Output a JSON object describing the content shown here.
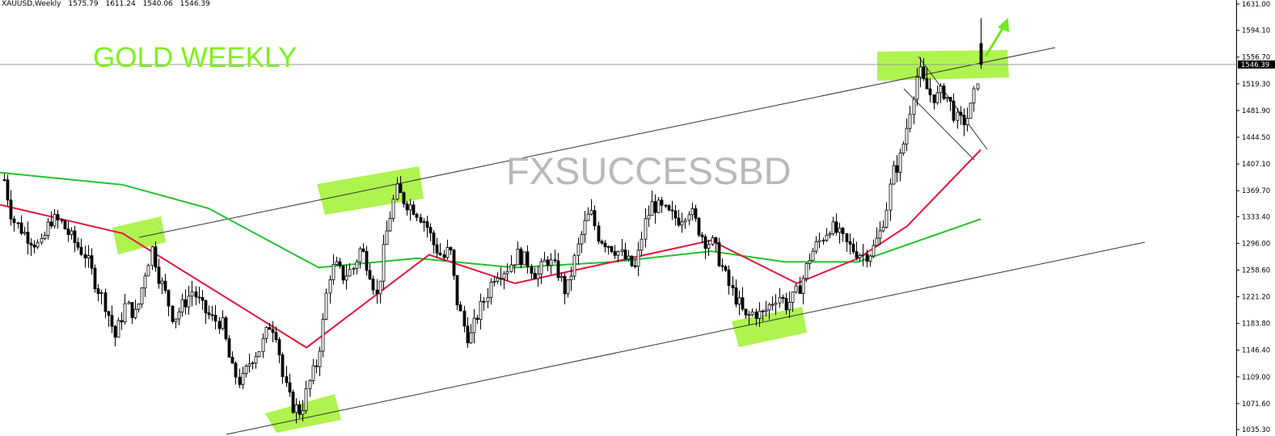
{
  "header": {
    "symbol": "XAUUSD,Weekly",
    "open": "1575.79",
    "high": "1611.24",
    "low": "1540.06",
    "close": "1546.39"
  },
  "title_label": "GOLD WEEKLY",
  "watermark": "FXSUCCESSBD",
  "colors": {
    "bull_candle_fill": "#ffffff",
    "bear_candle_fill": "#000000",
    "candle_outline": "#000000",
    "ma_fast": "#e3173c",
    "ma_slow": "#22c22e",
    "trendline": "#333333",
    "highlight": "#a6f23c",
    "arrow": "#6fe81e",
    "current_price_line": "#9a9a9a",
    "current_price_tag": "#000000"
  },
  "chart_data": {
    "type": "candlestick",
    "symbol": "XAUUSD",
    "timeframe": "Weekly",
    "y_axis": {
      "ticks": [
        "1631.00",
        "1594.10",
        "1556.70",
        "1519.30",
        "1481.90",
        "1444.50",
        "1407.10",
        "1369.70",
        "1333.40",
        "1296.00",
        "1258.60",
        "1221.20",
        "1183.80",
        "1146.40",
        "1109.00",
        "1071.60",
        "1035.30"
      ],
      "ylim": [
        1033,
        1632
      ],
      "current_price": "1546.39"
    },
    "ohlc_last": {
      "open": 1575.79,
      "high": 1611.24,
      "low": 1540.06,
      "close": 1546.39
    },
    "ma_fast_points": [
      [
        0,
        1350
      ],
      [
        0.1,
        1310
      ],
      [
        0.25,
        1150
      ],
      [
        0.35,
        1280
      ],
      [
        0.42,
        1240
      ],
      [
        0.5,
        1270
      ],
      [
        0.58,
        1300
      ],
      [
        0.65,
        1240
      ],
      [
        0.7,
        1275
      ],
      [
        0.74,
        1320
      ],
      [
        0.8,
        1427
      ]
    ],
    "ma_slow_points": [
      [
        0,
        1395
      ],
      [
        0.1,
        1378
      ],
      [
        0.17,
        1345
      ],
      [
        0.26,
        1262
      ],
      [
        0.34,
        1275
      ],
      [
        0.42,
        1262
      ],
      [
        0.5,
        1270
      ],
      [
        0.58,
        1285
      ],
      [
        0.64,
        1270
      ],
      [
        0.7,
        1270
      ],
      [
        0.8,
        1330
      ]
    ],
    "annotations": [
      "ascending channel upper trendline",
      "ascending channel lower trendline",
      "bull flag above breakout",
      "breakout arrow up"
    ]
  }
}
